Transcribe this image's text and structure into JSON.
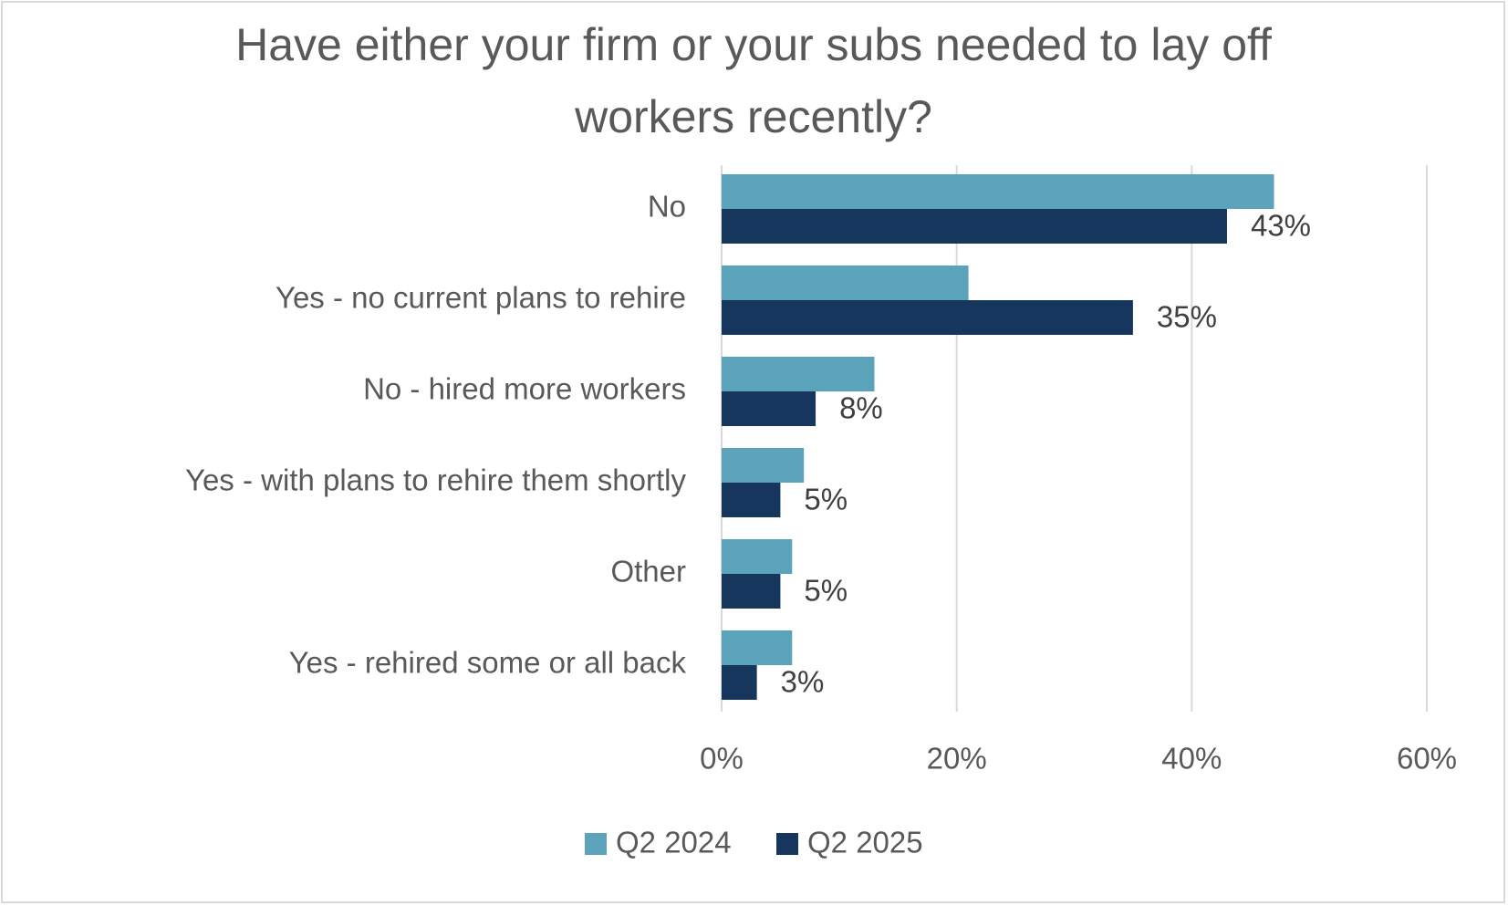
{
  "chart_data": {
    "type": "bar",
    "orientation": "horizontal",
    "title": [
      "Have either your firm or your subs needed to lay off",
      "workers recently?"
    ],
    "categories": [
      "No",
      "Yes - no current plans to rehire",
      "No - hired more workers",
      "Yes - with plans to rehire them shortly",
      "Other",
      "Yes - rehired some or all back"
    ],
    "series": [
      {
        "name": "Q2 2024",
        "color": "#5ba3bb",
        "values": [
          47,
          21,
          13,
          7,
          6,
          6
        ]
      },
      {
        "name": "Q2 2025",
        "color": "#17365d",
        "values": [
          43,
          35,
          8,
          5,
          5,
          3
        ]
      }
    ],
    "data_labels": [
      "43%",
      "35%",
      "8%",
      "5%",
      "5%",
      "3%"
    ],
    "xlim": [
      0,
      60
    ],
    "x_ticks": [
      "0%",
      "20%",
      "40%",
      "60%"
    ],
    "x_tick_values": [
      0,
      20,
      40,
      60
    ],
    "gridlines": true,
    "legend_position": "bottom"
  }
}
